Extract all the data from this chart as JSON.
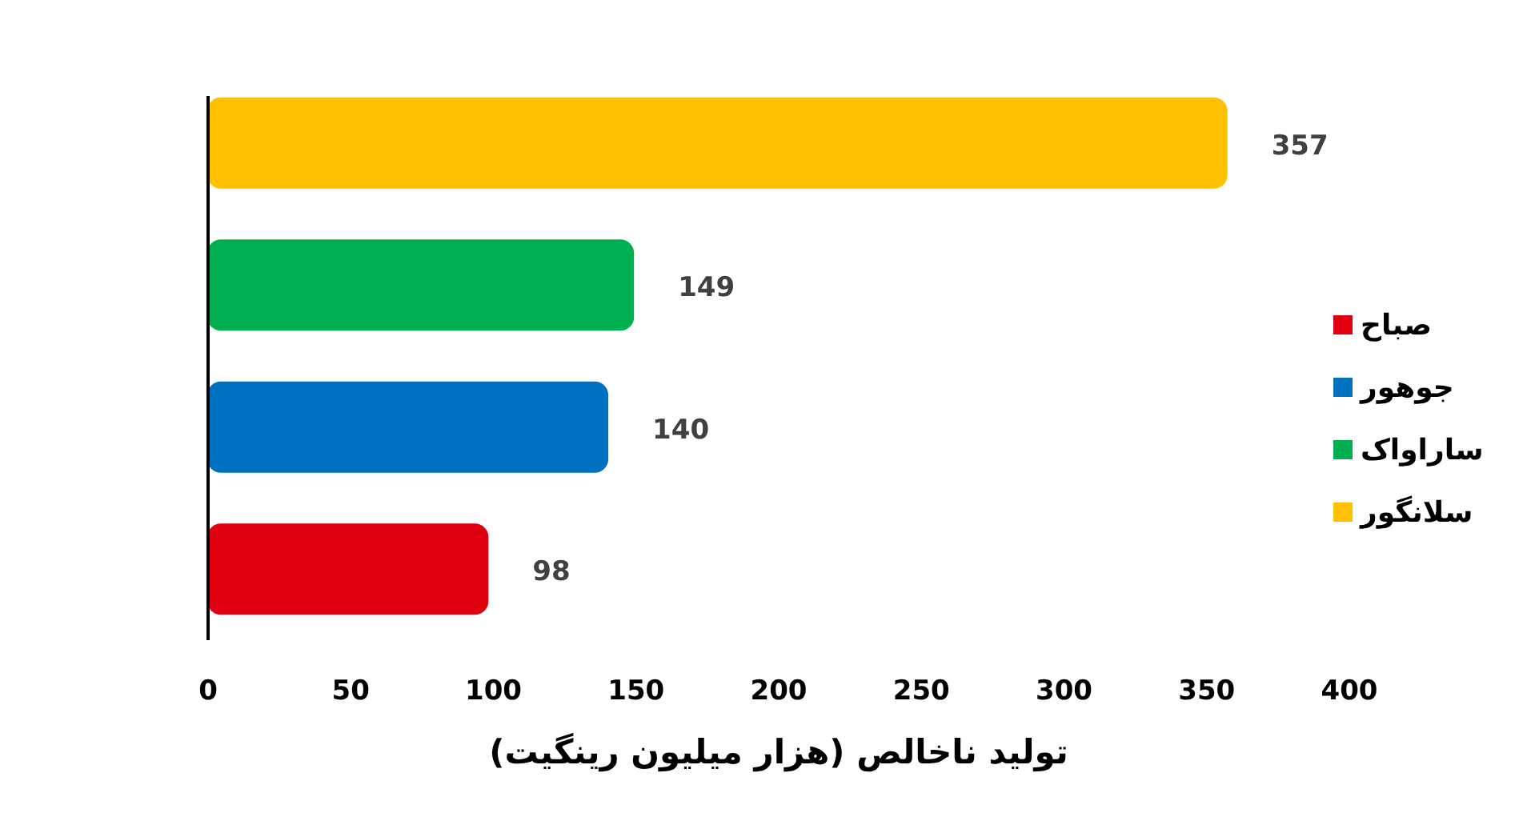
{
  "chart_data": {
    "type": "bar",
    "orientation": "horizontal",
    "categories": [
      null,
      null,
      null,
      null
    ],
    "series": [
      {
        "name": "صباح",
        "color": "#e00010",
        "values": [
          null,
          null,
          null,
          98
        ]
      },
      {
        "name": "جوهور",
        "color": "#0070c0",
        "values": [
          null,
          null,
          140,
          null
        ]
      },
      {
        "name": "ساراواک",
        "color": "#00b050",
        "values": [
          null,
          149,
          null,
          null
        ]
      },
      {
        "name": "سلانگور",
        "color": "#ffc000",
        "values": [
          357,
          null,
          null,
          null
        ]
      }
    ],
    "xlabel": "تولید ناخالص (هزار میلیون رینگیت)",
    "xlim": [
      0,
      400
    ],
    "xticks": [
      0,
      50,
      100,
      150,
      200,
      250,
      300,
      350,
      400
    ],
    "data_labels": true,
    "legend": "right",
    "grid": false
  }
}
